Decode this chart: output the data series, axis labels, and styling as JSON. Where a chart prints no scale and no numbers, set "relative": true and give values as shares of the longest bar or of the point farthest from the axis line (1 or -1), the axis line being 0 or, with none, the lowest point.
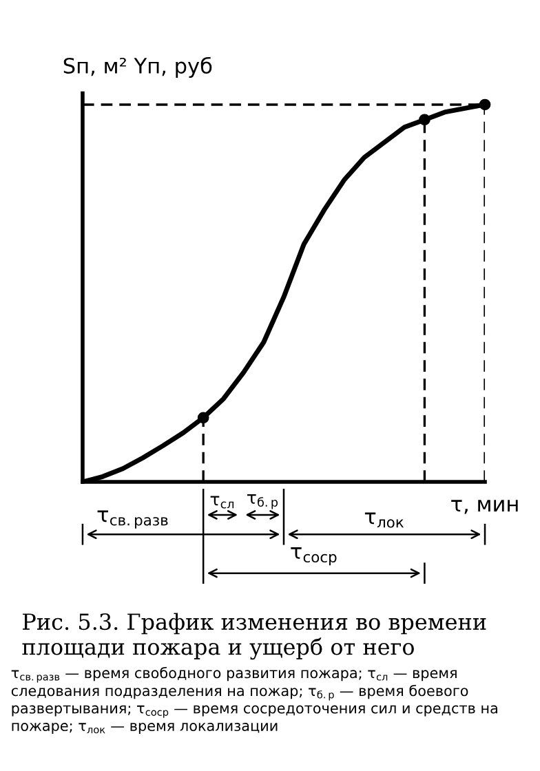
{
  "chart_data": {
    "type": "line",
    "relative": true,
    "title": "Рис. 5.3. График изменения во времени площади пожара и ущерб от него",
    "ylabel": "Sп, м² Yп, руб",
    "xlabel": "τ, мин",
    "categories": [
      null,
      null,
      null,
      null,
      null,
      null,
      null,
      null,
      null,
      null,
      null,
      null,
      null,
      null,
      null,
      null,
      null,
      null,
      null,
      null,
      null
    ],
    "series": [
      {
        "color": "#000000",
        "values": [
          0,
          0.014,
          0.035,
          0.064,
          0.096,
          0.13,
          0.17,
          0.22,
          0.29,
          0.37,
          0.49,
          0.63,
          0.72,
          0.8,
          0.86,
          0.9,
          0.94,
          0.96,
          0.98,
          0.99,
          1.0
        ]
      }
    ],
    "annotations": [
      "τ$_{св.разв}$",
      "τ$_{сл}$",
      "τ$_{б.р}$",
      "τ$_{лок}$",
      "τ$_{соср}$",
      "τ$_{св.разв}$ — время свободного развития пожара; τ$_{сл}$ — время следования подразделения на пожар; τ$_{б.р}$ — время боевого развертывания; τ$_{соср}$ — время сосредоточения сил и средств на пожаре; τ$_{лок}$ — время локализации"
    ],
    "grid": false,
    "legend": false
  }
}
